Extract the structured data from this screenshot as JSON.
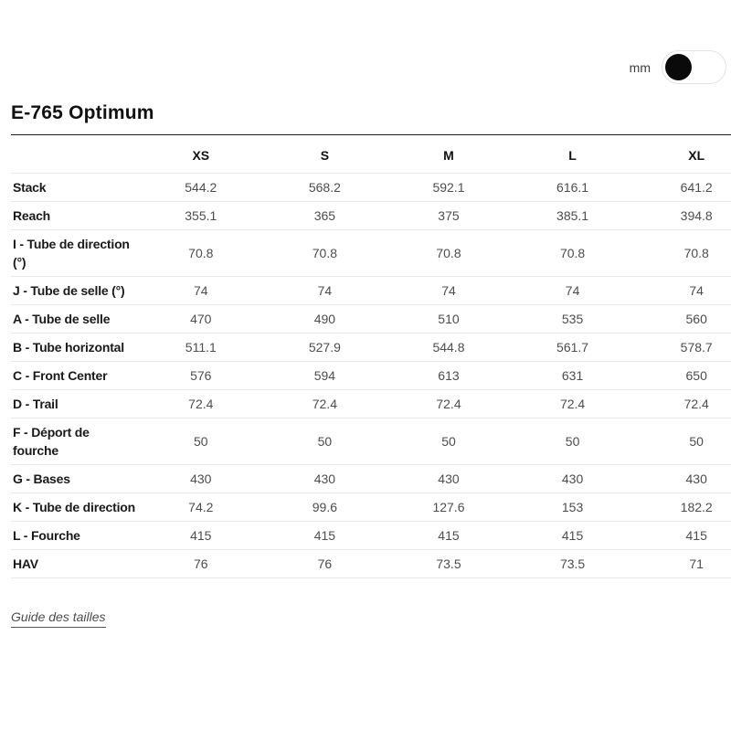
{
  "unit_toggle": {
    "label": "mm"
  },
  "page_title": "E-765 Optimum",
  "table": {
    "columns": [
      "XS",
      "S",
      "M",
      "L",
      "XL"
    ],
    "rows": [
      {
        "label": "Stack",
        "values": [
          "544.2",
          "568.2",
          "592.1",
          "616.1",
          "641.2"
        ]
      },
      {
        "label": "Reach",
        "values": [
          "355.1",
          "365",
          "375",
          "385.1",
          "394.8"
        ]
      },
      {
        "label": "I - Tube de direction (°)",
        "values": [
          "70.8",
          "70.8",
          "70.8",
          "70.8",
          "70.8"
        ]
      },
      {
        "label": "J - Tube de selle (°)",
        "values": [
          "74",
          "74",
          "74",
          "74",
          "74"
        ]
      },
      {
        "label": "A - Tube de selle",
        "values": [
          "470",
          "490",
          "510",
          "535",
          "560"
        ]
      },
      {
        "label": "B - Tube horizontal",
        "values": [
          "511.1",
          "527.9",
          "544.8",
          "561.7",
          "578.7"
        ]
      },
      {
        "label": "C - Front Center",
        "values": [
          "576",
          "594",
          "613",
          "631",
          "650"
        ]
      },
      {
        "label": "D - Trail",
        "values": [
          "72.4",
          "72.4",
          "72.4",
          "72.4",
          "72.4"
        ]
      },
      {
        "label": "F - Déport de fourche",
        "values": [
          "50",
          "50",
          "50",
          "50",
          "50"
        ]
      },
      {
        "label": "G - Bases",
        "values": [
          "430",
          "430",
          "430",
          "430",
          "430"
        ]
      },
      {
        "label": "K - Tube de direction",
        "values": [
          "74.2",
          "99.6",
          "127.6",
          "153",
          "182.2"
        ]
      },
      {
        "label": "L - Fourche",
        "values": [
          "415",
          "415",
          "415",
          "415",
          "415"
        ]
      },
      {
        "label": "HAV",
        "values": [
          "76",
          "76",
          "73.5",
          "73.5",
          "71"
        ]
      }
    ]
  },
  "footer": {
    "size_guide_link": "Guide des tailles"
  }
}
